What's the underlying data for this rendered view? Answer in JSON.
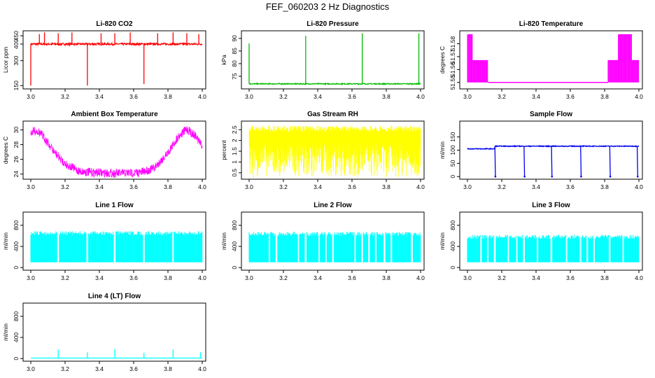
{
  "title": "FEF_060203  2 Hz Diagnostics",
  "colors": {
    "red": "#ff0000",
    "green": "#00bb00",
    "magenta": "#ff00ff",
    "yellow": "#ffff00",
    "blue": "#0000ee",
    "cyan": "#00ffff"
  },
  "chart_data": [
    {
      "type": "line",
      "title": "Li-820 CO2",
      "xlabel": "",
      "ylabel": "Licor ppm",
      "xlim": [
        3.0,
        4.0
      ],
      "ylim": [
        130,
        480
      ],
      "xticks": [
        "3.0",
        "3.2",
        "3.4",
        "3.6",
        "3.8",
        "4.0"
      ],
      "yticks": [
        150,
        300,
        450
      ],
      "yticks_extra": [
        {
          "value": 400,
          "label": "400"
        }
      ],
      "color": "red",
      "series": [
        {
          "name": "CO2",
          "baseline": 400,
          "noise": 6,
          "spikes": [
            {
              "x": 3.0,
              "y": 150
            },
            {
              "x": 3.05,
              "y": 460
            },
            {
              "x": 3.08,
              "y": 470
            },
            {
              "x": 3.16,
              "y": 465
            },
            {
              "x": 3.24,
              "y": 470
            },
            {
              "x": 3.33,
              "y": 150
            },
            {
              "x": 3.41,
              "y": 465
            },
            {
              "x": 3.49,
              "y": 465
            },
            {
              "x": 3.58,
              "y": 470
            },
            {
              "x": 3.66,
              "y": 160
            },
            {
              "x": 3.74,
              "y": 465
            },
            {
              "x": 3.83,
              "y": 470
            },
            {
              "x": 3.91,
              "y": 465
            },
            {
              "x": 3.98,
              "y": 460
            }
          ]
        }
      ]
    },
    {
      "type": "line",
      "title": "Li-820 Pressure",
      "xlabel": "",
      "ylabel": "kPa",
      "xlim": [
        3.0,
        4.0
      ],
      "ylim": [
        70,
        93
      ],
      "xticks": [
        "3.0",
        "3.2",
        "3.4",
        "3.6",
        "3.8",
        "4.0"
      ],
      "yticks": [
        75,
        80,
        85,
        90
      ],
      "color": "green",
      "series": [
        {
          "name": "Pressure",
          "baseline": 72,
          "noise": 0.2,
          "spikes": [
            {
              "x": 3.0,
              "y": 88
            },
            {
              "x": 3.33,
              "y": 91
            },
            {
              "x": 3.66,
              "y": 92
            },
            {
              "x": 3.99,
              "y": 92
            }
          ]
        }
      ]
    },
    {
      "type": "line",
      "title": "Li-820 Temperature",
      "xlabel": "",
      "ylabel": "degrees C",
      "xlim": [
        3.0,
        4.0
      ],
      "ylim": [
        51.545,
        51.59
      ],
      "xticks": [
        "3.0",
        "3.2",
        "3.4",
        "3.6",
        "3.8",
        "4.0"
      ],
      "yticks": [
        51.55,
        51.56,
        51.57,
        51.58
      ],
      "color": "magenta",
      "series": [
        {
          "name": "Temperature",
          "levels": [
            51.55,
            51.567,
            51.587
          ],
          "segments": [
            {
              "x0": 3.0,
              "x1": 3.03,
              "level": 2
            },
            {
              "x0": 3.03,
              "x1": 3.12,
              "level": 1
            },
            {
              "x0": 3.12,
              "x1": 3.82,
              "level": 0
            },
            {
              "x0": 3.82,
              "x1": 3.88,
              "level": 1
            },
            {
              "x0": 3.88,
              "x1": 3.96,
              "level": 2
            },
            {
              "x0": 3.96,
              "x1": 4.0,
              "level": 1
            }
          ]
        }
      ]
    },
    {
      "type": "line",
      "title": "Ambient Box Temperature",
      "xlabel": "",
      "ylabel": "degrees C",
      "xlim": [
        3.0,
        4.0
      ],
      "ylim": [
        23.3,
        31.2
      ],
      "xticks": [
        "3.0",
        "3.2",
        "3.4",
        "3.6",
        "3.8",
        "4.0"
      ],
      "yticks": [
        24,
        26,
        28,
        30
      ],
      "color": "magenta",
      "series": [
        {
          "name": "Box Temp",
          "points": [
            [
              3.0,
              30.3
            ],
            [
              3.04,
              30.5
            ],
            [
              3.08,
              29.5
            ],
            [
              3.14,
              27.5
            ],
            [
              3.2,
              26.0
            ],
            [
              3.28,
              25.0
            ],
            [
              3.36,
              24.8
            ],
            [
              3.5,
              24.7
            ],
            [
              3.64,
              24.8
            ],
            [
              3.72,
              25.4
            ],
            [
              3.8,
              27.5
            ],
            [
              3.86,
              29.7
            ],
            [
              3.91,
              30.7
            ],
            [
              3.96,
              29.8
            ],
            [
              4.0,
              28.4
            ]
          ],
          "noise": 1.2
        }
      ]
    },
    {
      "type": "line",
      "title": "Gas Stream RH",
      "xlabel": "",
      "ylabel": "percent",
      "xlim": [
        3.0,
        4.0
      ],
      "ylim": [
        0.2,
        2.9
      ],
      "xticks": [
        "3.0",
        "3.2",
        "3.4",
        "3.6",
        "3.8",
        "4.0"
      ],
      "yticks": [
        0.5,
        1.0,
        1.5,
        2.0,
        2.5
      ],
      "color": "yellow",
      "series": [
        {
          "name": "RH",
          "range": [
            0.3,
            2.7
          ]
        }
      ]
    },
    {
      "type": "line",
      "title": "Sample Flow",
      "xlabel": "",
      "ylabel": "ml/min",
      "xlim": [
        3.0,
        4.0
      ],
      "ylim": [
        -10,
        210
      ],
      "xticks": [
        "3.0",
        "3.2",
        "3.4",
        "3.6",
        "3.8",
        "4.0"
      ],
      "yticks": [
        0,
        50,
        100,
        150
      ],
      "color": "blue",
      "series": [
        {
          "name": "Sample",
          "baseline": 105,
          "baseline_after": 115,
          "step_x": 3.16,
          "noise": 3,
          "dips": [
            3.16,
            3.33,
            3.49,
            3.66,
            3.83,
            3.99
          ]
        }
      ]
    },
    {
      "type": "line",
      "title": "Line 1 Flow",
      "xlabel": "",
      "ylabel": "ml/min",
      "xlim": [
        3.0,
        4.0
      ],
      "ylim": [
        -50,
        1050
      ],
      "xticks": [
        "3.0",
        "3.2",
        "3.4",
        "3.6",
        "3.8",
        "4.0"
      ],
      "yticks": [
        0,
        400,
        800
      ],
      "color": "cyan",
      "series": [
        {
          "name": "Line 1",
          "low": 100,
          "high": 650,
          "gaps": [
            3.16,
            3.33,
            3.49,
            3.66,
            3.83
          ]
        }
      ]
    },
    {
      "type": "line",
      "title": "Line 2 Flow",
      "xlabel": "",
      "ylabel": "ml/min",
      "xlim": [
        3.0,
        4.0
      ],
      "ylim": [
        -50,
        1050
      ],
      "xticks": [
        "3.0",
        "3.2",
        "3.4",
        "3.6",
        "3.8",
        "4.0"
      ],
      "yticks": [
        0,
        400,
        800
      ],
      "color": "cyan",
      "series": [
        {
          "name": "Line 2",
          "low": 100,
          "high": 640,
          "gaps": [
            3.12,
            3.16,
            3.29,
            3.33,
            3.41,
            3.45,
            3.49,
            3.62,
            3.66,
            3.7,
            3.74,
            3.79,
            3.83,
            3.95
          ]
        }
      ]
    },
    {
      "type": "line",
      "title": "Line 3 Flow",
      "xlabel": "",
      "ylabel": "ml/min",
      "xlim": [
        3.0,
        4.0
      ],
      "ylim": [
        -50,
        1050
      ],
      "xticks": [
        "3.0",
        "3.2",
        "3.4",
        "3.6",
        "3.8",
        "4.0"
      ],
      "yticks": [
        0,
        400,
        800
      ],
      "color": "cyan",
      "series": [
        {
          "name": "Line 3",
          "low": 100,
          "high": 580,
          "gaps": [
            3.08,
            3.12,
            3.16,
            3.24,
            3.29,
            3.33,
            3.41,
            3.49,
            3.58,
            3.66,
            3.7,
            3.74,
            3.83,
            3.91
          ]
        }
      ]
    },
    {
      "type": "line",
      "title": "Line 4 (LT) Flow",
      "xlabel": "",
      "ylabel": "ml/min",
      "xlim": [
        3.0,
        4.0
      ],
      "ylim": [
        -50,
        1050
      ],
      "xticks": [
        "3.0",
        "3.2",
        "3.4",
        "3.6",
        "3.8",
        "4.0"
      ],
      "yticks": [
        0,
        400,
        800
      ],
      "color": "cyan",
      "series": [
        {
          "name": "Line 4",
          "baseline": 10,
          "spikes": [
            {
              "x": 3.16,
              "y": 170
            },
            {
              "x": 3.33,
              "y": 120
            },
            {
              "x": 3.49,
              "y": 180
            },
            {
              "x": 3.66,
              "y": 110
            },
            {
              "x": 3.83,
              "y": 170
            },
            {
              "x": 3.99,
              "y": 120
            }
          ]
        }
      ]
    }
  ]
}
